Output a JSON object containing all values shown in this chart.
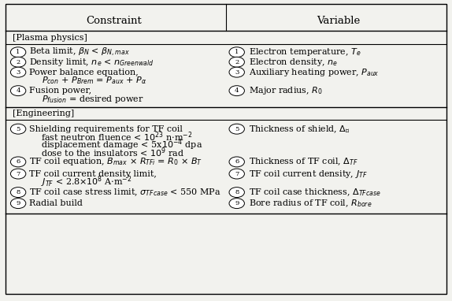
{
  "header_constraint": "Constraint",
  "header_variable": "Variable",
  "section1_label": "[Plasma physics]",
  "section2_label": "[Engineering]",
  "bg_color": "#f2f2ee",
  "font_size": 8.0,
  "header_font_size": 9.5
}
